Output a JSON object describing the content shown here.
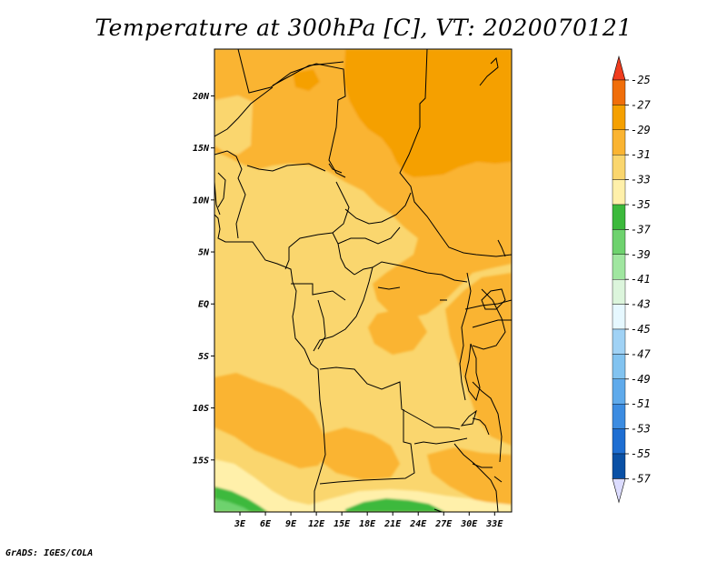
{
  "title": "Temperature at 300hPa [C], VT: 2020070121",
  "footer": "GrADS: IGES/COLA",
  "map": {
    "lat_labels": [
      {
        "label": "20N",
        "lat": 20
      },
      {
        "label": "15N",
        "lat": 15
      },
      {
        "label": "10N",
        "lat": 10
      },
      {
        "label": "5N",
        "lat": 5
      },
      {
        "label": "EQ",
        "lat": 0
      },
      {
        "label": "5S",
        "lat": -5
      },
      {
        "label": "10S",
        "lat": -10
      },
      {
        "label": "15S",
        "lat": -15
      }
    ],
    "lon_labels": [
      {
        "label": "3E",
        "lon": 3
      },
      {
        "label": "6E",
        "lon": 6
      },
      {
        "label": "9E",
        "lon": 9
      },
      {
        "label": "12E",
        "lon": 12
      },
      {
        "label": "15E",
        "lon": 15
      },
      {
        "label": "18E",
        "lon": 18
      },
      {
        "label": "21E",
        "lon": 21
      },
      {
        "label": "24E",
        "lon": 24
      },
      {
        "label": "27E",
        "lon": 27
      },
      {
        "label": "30E",
        "lon": 30
      },
      {
        "label": "33E",
        "lon": 33
      }
    ],
    "lon_range": [
      0,
      35
    ],
    "lat_range": [
      -20,
      24.5
    ]
  },
  "legend": {
    "levels": [
      "-25",
      "-27",
      "-29",
      "-31",
      "-33",
      "-35",
      "-37",
      "-39",
      "-41",
      "-43",
      "-45",
      "-47",
      "-49",
      "-51",
      "-53",
      "-55",
      "-57"
    ],
    "colors": {
      "top_arrow": "#f03c1e",
      "bands": [
        "#f06e0a",
        "#f5a000",
        "#fab432",
        "#fad66e",
        "#fff0aa",
        "#3cb93c",
        "#6ed26e",
        "#a0e6a0",
        "#dcf5dc",
        "#e6f8ff",
        "#a0d2f5",
        "#82c3f0",
        "#5faaeb",
        "#3c8ce1",
        "#1e6ed2",
        "#0a50a5",
        "#000a6e"
      ],
      "bottom_arrow": "#dcdcff"
    }
  },
  "colors": {
    "t27": "#f5a000",
    "t29": "#fab432",
    "t31": "#fad66e",
    "t33": "#fff0aa",
    "t35": "#3cb93c",
    "t37": "#6ed26e"
  }
}
